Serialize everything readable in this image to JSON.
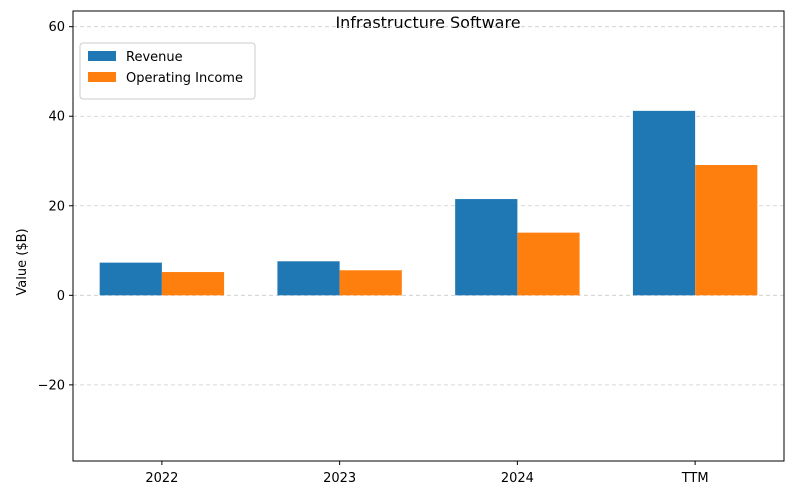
{
  "chart_data": {
    "type": "bar",
    "title": "Infrastructure Software",
    "xlabel": "",
    "ylabel": "Value ($B)",
    "categories": [
      "2022",
      "2023",
      "2024",
      "TTM"
    ],
    "series": [
      {
        "name": "Revenue",
        "color": "#1f77b4",
        "values": [
          7.3,
          7.6,
          21.5,
          41.2
        ]
      },
      {
        "name": "Operating Income",
        "color": "#ff7f0e",
        "values": [
          5.2,
          5.6,
          14.0,
          29.1
        ]
      }
    ],
    "ylim": [
      -37,
      63.5
    ],
    "yticks": [
      -20,
      0,
      20,
      40,
      60
    ],
    "ytick_labels": [
      "−20",
      "0",
      "20",
      "40",
      "60"
    ],
    "grid": true,
    "legend_position": "top-left"
  }
}
